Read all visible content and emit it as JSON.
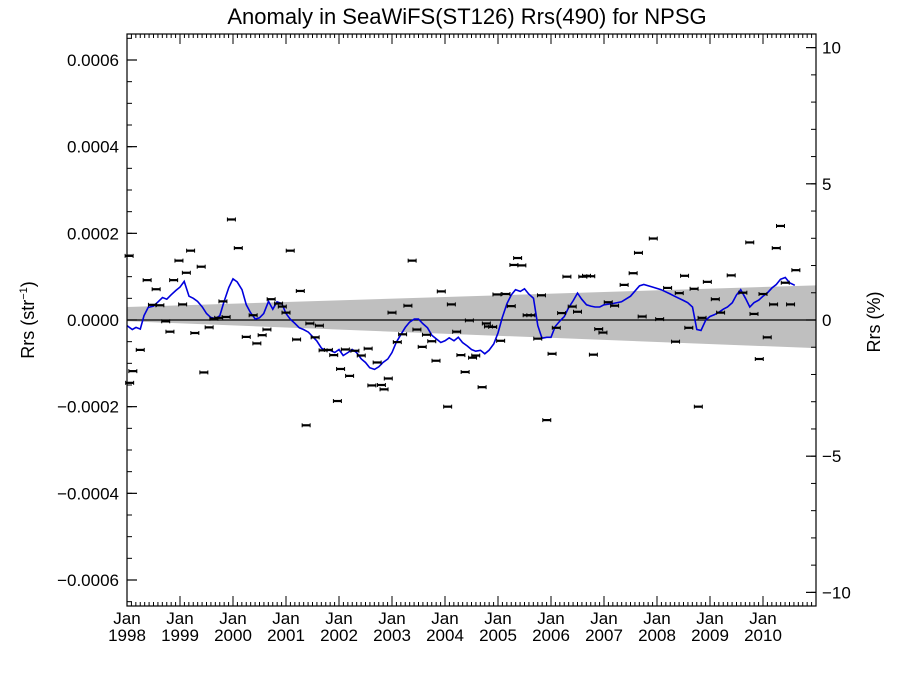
{
  "chart_data": {
    "type": "scatter",
    "title": "Anomaly in SeaWiFS(ST126) Rrs(490) for NPSG",
    "ylabel_left": {
      "base": "Rrs (str",
      "sup": "−1",
      "end": ")"
    },
    "ylabel_right": "Rrs (%)",
    "x_domain": [
      1998.0,
      2011.0
    ],
    "ylim_left": [
      -0.00066,
      0.00066
    ],
    "ylim_right": [
      -10.5,
      10.5
    ],
    "left_ticks": [
      {
        "v": 0.0006,
        "label": "0.0006"
      },
      {
        "v": 0.0004,
        "label": "0.0004"
      },
      {
        "v": 0.0002,
        "label": "0.0002"
      },
      {
        "v": 0.0,
        "label": "0.0000"
      },
      {
        "v": -0.0002,
        "label": "−0.0002"
      },
      {
        "v": -0.0004,
        "label": "−0.0004"
      },
      {
        "v": -0.0006,
        "label": "−0.0006"
      }
    ],
    "right_ticks": [
      {
        "v": 10,
        "label": "10"
      },
      {
        "v": 5,
        "label": "5"
      },
      {
        "v": 0,
        "label": "0"
      },
      {
        "v": -5,
        "label": "−5"
      },
      {
        "v": -10,
        "label": "−10"
      }
    ],
    "x_ticks": [
      {
        "v": 1998,
        "top": "Jan",
        "bottom": "1998"
      },
      {
        "v": 1999,
        "top": "Jan",
        "bottom": "1999"
      },
      {
        "v": 2000,
        "top": "Jan",
        "bottom": "2000"
      },
      {
        "v": 2001,
        "top": "Jan",
        "bottom": "2001"
      },
      {
        "v": 2002,
        "top": "Jan",
        "bottom": "2002"
      },
      {
        "v": 2003,
        "top": "Jan",
        "bottom": "2003"
      },
      {
        "v": 2004,
        "top": "Jan",
        "bottom": "2004"
      },
      {
        "v": 2005,
        "top": "Jan",
        "bottom": "2005"
      },
      {
        "v": 2006,
        "top": "Jan",
        "bottom": "2006"
      },
      {
        "v": 2007,
        "top": "Jan",
        "bottom": "2007"
      },
      {
        "v": 2008,
        "top": "Jan",
        "bottom": "2008"
      },
      {
        "v": 2009,
        "top": "Jan",
        "bottom": "2009"
      },
      {
        "v": 2010,
        "top": "Jan",
        "bottom": "2010"
      }
    ],
    "points": [
      [
        1998.04,
        0.000148
      ],
      [
        1998.05,
        -0.000145
      ],
      [
        1998.11,
        -0.000118
      ],
      [
        1998.25,
        -6.9e-05
      ],
      [
        1998.38,
        9.2e-05
      ],
      [
        1998.48,
        3.5e-05
      ],
      [
        1998.55,
        7.1e-05
      ],
      [
        1998.62,
        3.4e-05
      ],
      [
        1998.73,
        -3e-06
      ],
      [
        1998.81,
        -2.7e-05
      ],
      [
        1998.88,
        9.2e-05
      ],
      [
        1998.98,
        0.000137
      ],
      [
        1999.05,
        3.6e-05
      ],
      [
        1999.12,
        0.000109
      ],
      [
        1999.2,
        0.00016
      ],
      [
        1999.28,
        -3e-05
      ],
      [
        1999.4,
        0.000123
      ],
      [
        1999.45,
        -0.000121
      ],
      [
        1999.55,
        -1.7e-05
      ],
      [
        1999.64,
        3e-06
      ],
      [
        1999.73,
        5e-06
      ],
      [
        1999.81,
        4.3e-05
      ],
      [
        1999.87,
        7e-06
      ],
      [
        1999.97,
        0.000232
      ],
      [
        2000.1,
        0.000166
      ],
      [
        2000.25,
        -3.9e-05
      ],
      [
        2000.38,
        1.1e-05
      ],
      [
        2000.45,
        -5.4e-05
      ],
      [
        2000.55,
        -3.5e-05
      ],
      [
        2000.64,
        -2.2e-05
      ],
      [
        2000.72,
        4.8e-05
      ],
      [
        2000.86,
        3.8e-05
      ],
      [
        2000.93,
        3.1e-05
      ],
      [
        2001.0,
        1.7e-05
      ],
      [
        2001.08,
        0.00016
      ],
      [
        2001.2,
        -4.5e-05
      ],
      [
        2001.27,
        6.7e-05
      ],
      [
        2001.38,
        -0.000243
      ],
      [
        2001.45,
        -8e-06
      ],
      [
        2001.55,
        -4e-05
      ],
      [
        2001.63,
        -1.3e-05
      ],
      [
        2001.7,
        -7e-05
      ],
      [
        2001.8,
        -6.9e-05
      ],
      [
        2001.9,
        -8.1e-05
      ],
      [
        2001.97,
        -0.000187
      ],
      [
        2002.03,
        -0.000113
      ],
      [
        2002.12,
        -6.8e-05
      ],
      [
        2002.2,
        -0.000129
      ],
      [
        2002.3,
        -7.1e-05
      ],
      [
        2002.42,
        -8.2e-05
      ],
      [
        2002.55,
        -6.6e-05
      ],
      [
        2002.62,
        -0.000151
      ],
      [
        2002.72,
        -9.8e-05
      ],
      [
        2002.8,
        -0.00015
      ],
      [
        2002.85,
        -0.00016
      ],
      [
        2002.93,
        -0.000135
      ],
      [
        2003.0,
        1.7e-05
      ],
      [
        2003.1,
        -5.1e-05
      ],
      [
        2003.2,
        -3.3e-05
      ],
      [
        2003.3,
        3.3e-05
      ],
      [
        2003.38,
        0.000137
      ],
      [
        2003.47,
        -2.2e-05
      ],
      [
        2003.57,
        -6.2e-05
      ],
      [
        2003.65,
        -3.4e-05
      ],
      [
        2003.75,
        -4.9e-05
      ],
      [
        2003.83,
        -9.4e-05
      ],
      [
        2003.93,
        6.6e-05
      ],
      [
        2004.05,
        -0.0002
      ],
      [
        2004.12,
        3.6e-05
      ],
      [
        2004.22,
        -2.7e-05
      ],
      [
        2004.3,
        -8.1e-05
      ],
      [
        2004.38,
        -0.00012
      ],
      [
        2004.46,
        -1e-06
      ],
      [
        2004.52,
        -8.7e-05
      ],
      [
        2004.58,
        -8.2e-05
      ],
      [
        2004.7,
        -0.000155
      ],
      [
        2004.78,
        -8e-06
      ],
      [
        2004.82,
        -1.5e-05
      ],
      [
        2004.9,
        -1.6e-05
      ],
      [
        2004.98,
        5.9e-05
      ],
      [
        2005.05,
        -4.8e-05
      ],
      [
        2005.15,
        6e-05
      ],
      [
        2005.25,
        3.2e-05
      ],
      [
        2005.3,
        0.000127
      ],
      [
        2005.37,
        0.000143
      ],
      [
        2005.45,
        0.000126
      ],
      [
        2005.55,
        1.1e-05
      ],
      [
        2005.62,
        1.1e-05
      ],
      [
        2005.75,
        -4.3e-05
      ],
      [
        2005.82,
        5.7e-05
      ],
      [
        2005.92,
        -0.000231
      ],
      [
        2006.02,
        -7.8e-05
      ],
      [
        2006.1,
        -1.8e-05
      ],
      [
        2006.2,
        1.6e-05
      ],
      [
        2006.3,
        0.0001
      ],
      [
        2006.4,
        3.1e-05
      ],
      [
        2006.5,
        1.9e-05
      ],
      [
        2006.6,
        0.0001
      ],
      [
        2006.67,
        0.000102
      ],
      [
        2006.75,
        0.000101
      ],
      [
        2006.8,
        -8e-05
      ],
      [
        2006.9,
        -2.1e-05
      ],
      [
        2006.98,
        -2.9e-05
      ],
      [
        2007.08,
        4.1e-05
      ],
      [
        2007.2,
        3.3e-05
      ],
      [
        2007.38,
        8.1e-05
      ],
      [
        2007.55,
        0.000108
      ],
      [
        2007.65,
        0.000155
      ],
      [
        2007.72,
        8e-06
      ],
      [
        2007.93,
        0.000188
      ],
      [
        2008.05,
        2e-06
      ],
      [
        2008.2,
        7.4e-05
      ],
      [
        2008.35,
        -5e-05
      ],
      [
        2008.42,
        6.2e-05
      ],
      [
        2008.52,
        0.000102
      ],
      [
        2008.6,
        -1.8e-05
      ],
      [
        2008.7,
        7.2e-05
      ],
      [
        2008.78,
        -0.0002
      ],
      [
        2008.85,
        5e-06
      ],
      [
        2008.95,
        8.8e-05
      ],
      [
        2009.1,
        4.8e-05
      ],
      [
        2009.2,
        1.7e-05
      ],
      [
        2009.4,
        0.000103
      ],
      [
        2009.62,
        6.3e-05
      ],
      [
        2009.75,
        0.000179
      ],
      [
        2009.83,
        1.4e-05
      ],
      [
        2009.93,
        -9e-05
      ],
      [
        2010.0,
        6e-05
      ],
      [
        2010.08,
        -4e-05
      ],
      [
        2010.2,
        3.6e-05
      ],
      [
        2010.25,
        0.000166
      ],
      [
        2010.33,
        0.000217
      ],
      [
        2010.42,
        8.6e-05
      ],
      [
        2010.52,
        3.6e-05
      ],
      [
        2010.62,
        0.000115
      ]
    ],
    "smooth_line": [
      [
        1998.0,
        -1.3e-05
      ],
      [
        1998.1,
        -2.2e-05
      ],
      [
        1998.17,
        -1.7e-05
      ],
      [
        1998.25,
        -2.1e-05
      ],
      [
        1998.32,
        1e-05
      ],
      [
        1998.4,
        2.9e-05
      ],
      [
        1998.5,
        3.2e-05
      ],
      [
        1998.58,
        4.1e-05
      ],
      [
        1998.67,
        5.2e-05
      ],
      [
        1998.75,
        4.8e-05
      ],
      [
        1998.83,
        5.8e-05
      ],
      [
        1998.92,
        6.8e-05
      ],
      [
        1999.0,
        7.6e-05
      ],
      [
        1999.08,
        8.9e-05
      ],
      [
        1999.17,
        5.5e-05
      ],
      [
        1999.25,
        5e-05
      ],
      [
        1999.33,
        4.3e-05
      ],
      [
        1999.42,
        3e-05
      ],
      [
        1999.5,
        1.5e-05
      ],
      [
        1999.58,
        6e-06
      ],
      [
        1999.67,
        3e-06
      ],
      [
        1999.75,
        1e-05
      ],
      [
        1999.83,
        4.2e-05
      ],
      [
        1999.92,
        7.5e-05
      ],
      [
        2000.0,
        9.5e-05
      ],
      [
        2000.08,
        8.8e-05
      ],
      [
        2000.17,
        7e-05
      ],
      [
        2000.25,
        3.5e-05
      ],
      [
        2000.33,
        1.7e-05
      ],
      [
        2000.42,
        2e-06
      ],
      [
        2000.5,
        5e-06
      ],
      [
        2000.58,
        1.5e-05
      ],
      [
        2000.67,
        4.3e-05
      ],
      [
        2000.75,
        2.5e-05
      ],
      [
        2000.83,
        4.2e-05
      ],
      [
        2000.92,
        3.8e-05
      ],
      [
        2001.0,
        1.5e-05
      ],
      [
        2001.08,
        2e-06
      ],
      [
        2001.17,
        -8e-06
      ],
      [
        2001.25,
        -1.8e-05
      ],
      [
        2001.33,
        -2.2e-05
      ],
      [
        2001.42,
        -2.8e-05
      ],
      [
        2001.5,
        -3.8e-05
      ],
      [
        2001.58,
        -4.8e-05
      ],
      [
        2001.67,
        -6.5e-05
      ],
      [
        2001.75,
        -7e-05
      ],
      [
        2001.83,
        -7e-05
      ],
      [
        2001.92,
        -7.5e-05
      ],
      [
        2002.0,
        -6.8e-05
      ],
      [
        2002.08,
        -8.2e-05
      ],
      [
        2002.17,
        -7.5e-05
      ],
      [
        2002.25,
        -6.8e-05
      ],
      [
        2002.33,
        -7.5e-05
      ],
      [
        2002.42,
        -9e-05
      ],
      [
        2002.5,
        -9.8e-05
      ],
      [
        2002.58,
        -0.00011
      ],
      [
        2002.67,
        -0.000114
      ],
      [
        2002.75,
        -0.000108
      ],
      [
        2002.83,
        -9.8e-05
      ],
      [
        2002.92,
        -9e-05
      ],
      [
        2003.0,
        -7.5e-05
      ],
      [
        2003.08,
        -5.2e-05
      ],
      [
        2003.17,
        -3.3e-05
      ],
      [
        2003.25,
        -1.7e-05
      ],
      [
        2003.33,
        -5e-06
      ],
      [
        2003.42,
        2e-06
      ],
      [
        2003.5,
        2e-06
      ],
      [
        2003.58,
        -8e-06
      ],
      [
        2003.67,
        -1.8e-05
      ],
      [
        2003.75,
        -3.5e-05
      ],
      [
        2003.83,
        -4.3e-05
      ],
      [
        2003.92,
        -5.2e-05
      ],
      [
        2004.0,
        -4.8e-05
      ],
      [
        2004.08,
        -4.1e-05
      ],
      [
        2004.17,
        -4.8e-05
      ],
      [
        2004.25,
        -4e-05
      ],
      [
        2004.33,
        -5.2e-05
      ],
      [
        2004.42,
        -6e-05
      ],
      [
        2004.5,
        -6.8e-05
      ],
      [
        2004.58,
        -7.2e-05
      ],
      [
        2004.67,
        -7e-05
      ],
      [
        2004.75,
        -7.8e-05
      ],
      [
        2004.83,
        -7e-05
      ],
      [
        2004.92,
        -5.5e-05
      ],
      [
        2005.0,
        -3e-05
      ],
      [
        2005.08,
        5e-06
      ],
      [
        2005.17,
        3.8e-05
      ],
      [
        2005.25,
        5.8e-05
      ],
      [
        2005.33,
        7e-05
      ],
      [
        2005.42,
        6.6e-05
      ],
      [
        2005.5,
        7.2e-05
      ],
      [
        2005.58,
        6e-05
      ],
      [
        2005.67,
        5e-05
      ],
      [
        2005.75,
        -1.3e-05
      ],
      [
        2005.83,
        -4.2e-05
      ],
      [
        2005.92,
        -4e-05
      ],
      [
        2006.0,
        -4e-05
      ],
      [
        2006.08,
        -1.5e-05
      ],
      [
        2006.17,
        -2e-06
      ],
      [
        2006.25,
        8e-06
      ],
      [
        2006.33,
        2.8e-05
      ],
      [
        2006.42,
        4.5e-05
      ],
      [
        2006.5,
        6.2e-05
      ],
      [
        2006.58,
        4.8e-05
      ],
      [
        2006.67,
        3.5e-05
      ],
      [
        2006.75,
        3.2e-05
      ],
      [
        2006.83,
        3e-05
      ],
      [
        2006.92,
        3e-05
      ],
      [
        2007.0,
        3.5e-05
      ],
      [
        2007.17,
        3.8e-05
      ],
      [
        2007.33,
        4.2e-05
      ],
      [
        2007.5,
        5.5e-05
      ],
      [
        2007.67,
        7.9e-05
      ],
      [
        2007.75,
        8.2e-05
      ],
      [
        2007.92,
        7.6e-05
      ],
      [
        2008.08,
        7e-05
      ],
      [
        2008.25,
        6e-05
      ],
      [
        2008.33,
        5.5e-05
      ],
      [
        2008.5,
        4.5e-05
      ],
      [
        2008.58,
        4e-05
      ],
      [
        2008.67,
        3e-05
      ],
      [
        2008.75,
        -2.2e-05
      ],
      [
        2008.83,
        -2.4e-05
      ],
      [
        2008.92,
        0.0
      ],
      [
        2009.0,
        8e-06
      ],
      [
        2009.08,
        1.2e-05
      ],
      [
        2009.17,
        1.8e-05
      ],
      [
        2009.25,
        2.5e-05
      ],
      [
        2009.33,
        3e-05
      ],
      [
        2009.42,
        4e-05
      ],
      [
        2009.5,
        5.8e-05
      ],
      [
        2009.58,
        7e-05
      ],
      [
        2009.67,
        5e-05
      ],
      [
        2009.75,
        3e-05
      ],
      [
        2009.83,
        4e-05
      ],
      [
        2009.92,
        4.6e-05
      ],
      [
        2010.0,
        5.5e-05
      ],
      [
        2010.08,
        6.2e-05
      ],
      [
        2010.17,
        7.4e-05
      ],
      [
        2010.25,
        8.2e-05
      ],
      [
        2010.33,
        9.4e-05
      ],
      [
        2010.42,
        9.8e-05
      ],
      [
        2010.5,
        8.6e-05
      ],
      [
        2010.6,
        8e-05
      ]
    ],
    "trend_band": {
      "x_start": 1998.0,
      "x_end": 2011.0,
      "upper_start": 3e-05,
      "upper_end": 8e-05,
      "lower_start": -3e-06,
      "lower_end": -6.5e-05
    },
    "zero_line": 0,
    "colors": {
      "smooth_line": "#0000dd",
      "trend_band": "#bfbfbf",
      "points": "#000000",
      "axes": "#000000"
    },
    "grid": false
  }
}
